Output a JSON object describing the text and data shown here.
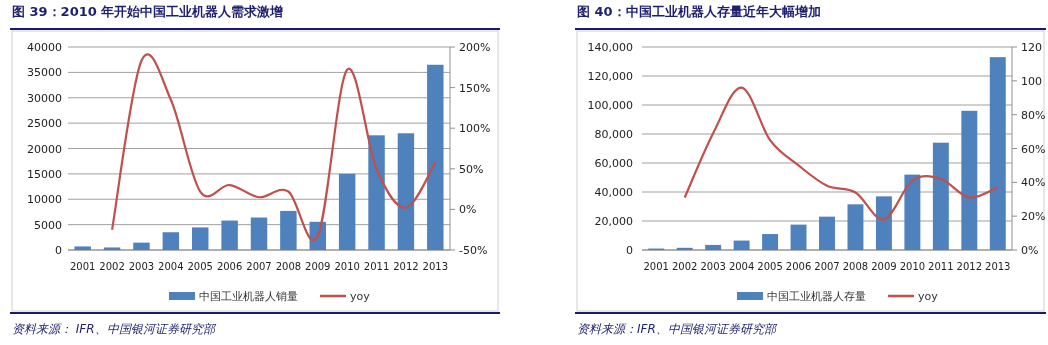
{
  "chart_data": [
    {
      "type": "bar",
      "title": "图 39：2010 年开始中国工业机器人需求激增",
      "categories": [
        "2001",
        "2002",
        "2003",
        "2004",
        "2005",
        "2006",
        "2007",
        "2008",
        "2009",
        "2010",
        "2011",
        "2012",
        "2013"
      ],
      "series": [
        {
          "name": "中国工业机器人销量",
          "color": "#4f81bd",
          "values": [
            700,
            500,
            1450,
            3500,
            4450,
            5800,
            6400,
            7700,
            5550,
            15000,
            22600,
            23000,
            36500
          ]
        },
        {
          "name": "yoy",
          "type": "line",
          "axis": "y2",
          "color": "#c0504d",
          "values": [
            null,
            -25,
            183,
            135,
            22,
            30,
            15,
            22,
            -33,
            172,
            50,
            2,
            58
          ]
        }
      ],
      "ylim": [
        0,
        40000
      ],
      "yticks": [
        0,
        5000,
        10000,
        15000,
        20000,
        25000,
        30000,
        35000,
        40000
      ],
      "y2lim": [
        -50,
        200
      ],
      "y2ticks": [
        {
          "value": -50,
          "label": "-50%"
        },
        {
          "value": 0,
          "label": "0%"
        },
        {
          "value": 50,
          "label": "50%"
        },
        {
          "value": 100,
          "label": "100%"
        },
        {
          "value": 150,
          "label": "150%"
        },
        {
          "value": 200,
          "label": "200%"
        }
      ],
      "grid": "y",
      "legend": "bottom",
      "marker": "none",
      "line_style": "solid",
      "annotations": [
        "资料来源：   IFR、中国银河证券研究部"
      ]
    },
    {
      "type": "bar",
      "title": "图 40：中国工业机器人存量近年大幅增加",
      "categories": [
        "2001",
        "2002",
        "2003",
        "2004",
        "2005",
        "2006",
        "2007",
        "2008",
        "2009",
        "2010",
        "2011",
        "2012",
        "2013"
      ],
      "series": [
        {
          "name": "中国工业机器人存量",
          "color": "#4f81bd",
          "values": [
            1000,
            1500,
            3500,
            6500,
            11000,
            17500,
            23000,
            31500,
            37000,
            52000,
            74000,
            96000,
            133000
          ]
        },
        {
          "name": "yoy",
          "type": "line",
          "axis": "y2",
          "color": "#c0504d",
          "values": [
            null,
            31,
            69,
            96,
            65,
            50,
            38,
            34,
            18,
            41,
            42,
            31,
            37
          ]
        }
      ],
      "ylim": [
        0,
        140000
      ],
      "yticks": [
        {
          "value": 0,
          "label": "0"
        },
        {
          "value": 20000,
          "label": "20,000"
        },
        {
          "value": 40000,
          "label": "40,000"
        },
        {
          "value": 60000,
          "label": "60,000"
        },
        {
          "value": 80000,
          "label": "80,000"
        },
        {
          "value": 100000,
          "label": "100,000"
        },
        {
          "value": 120000,
          "label": "120,000"
        },
        {
          "value": 140000,
          "label": "140,000"
        }
      ],
      "y2lim": [
        0,
        120
      ],
      "y2ticks": [
        {
          "value": 0,
          "label": "0%"
        },
        {
          "value": 20,
          "label": "20%"
        },
        {
          "value": 40,
          "label": "40%"
        },
        {
          "value": 60,
          "label": "60%"
        },
        {
          "value": 80,
          "label": "80%"
        },
        {
          "value": 100,
          "label": "100"
        },
        {
          "value": 120,
          "label": "120"
        }
      ],
      "grid": "y",
      "legend": "bottom",
      "marker": "none",
      "line_style": "solid",
      "annotations": [
        "资料来源：IFR、中国银河证券研究部"
      ]
    }
  ]
}
